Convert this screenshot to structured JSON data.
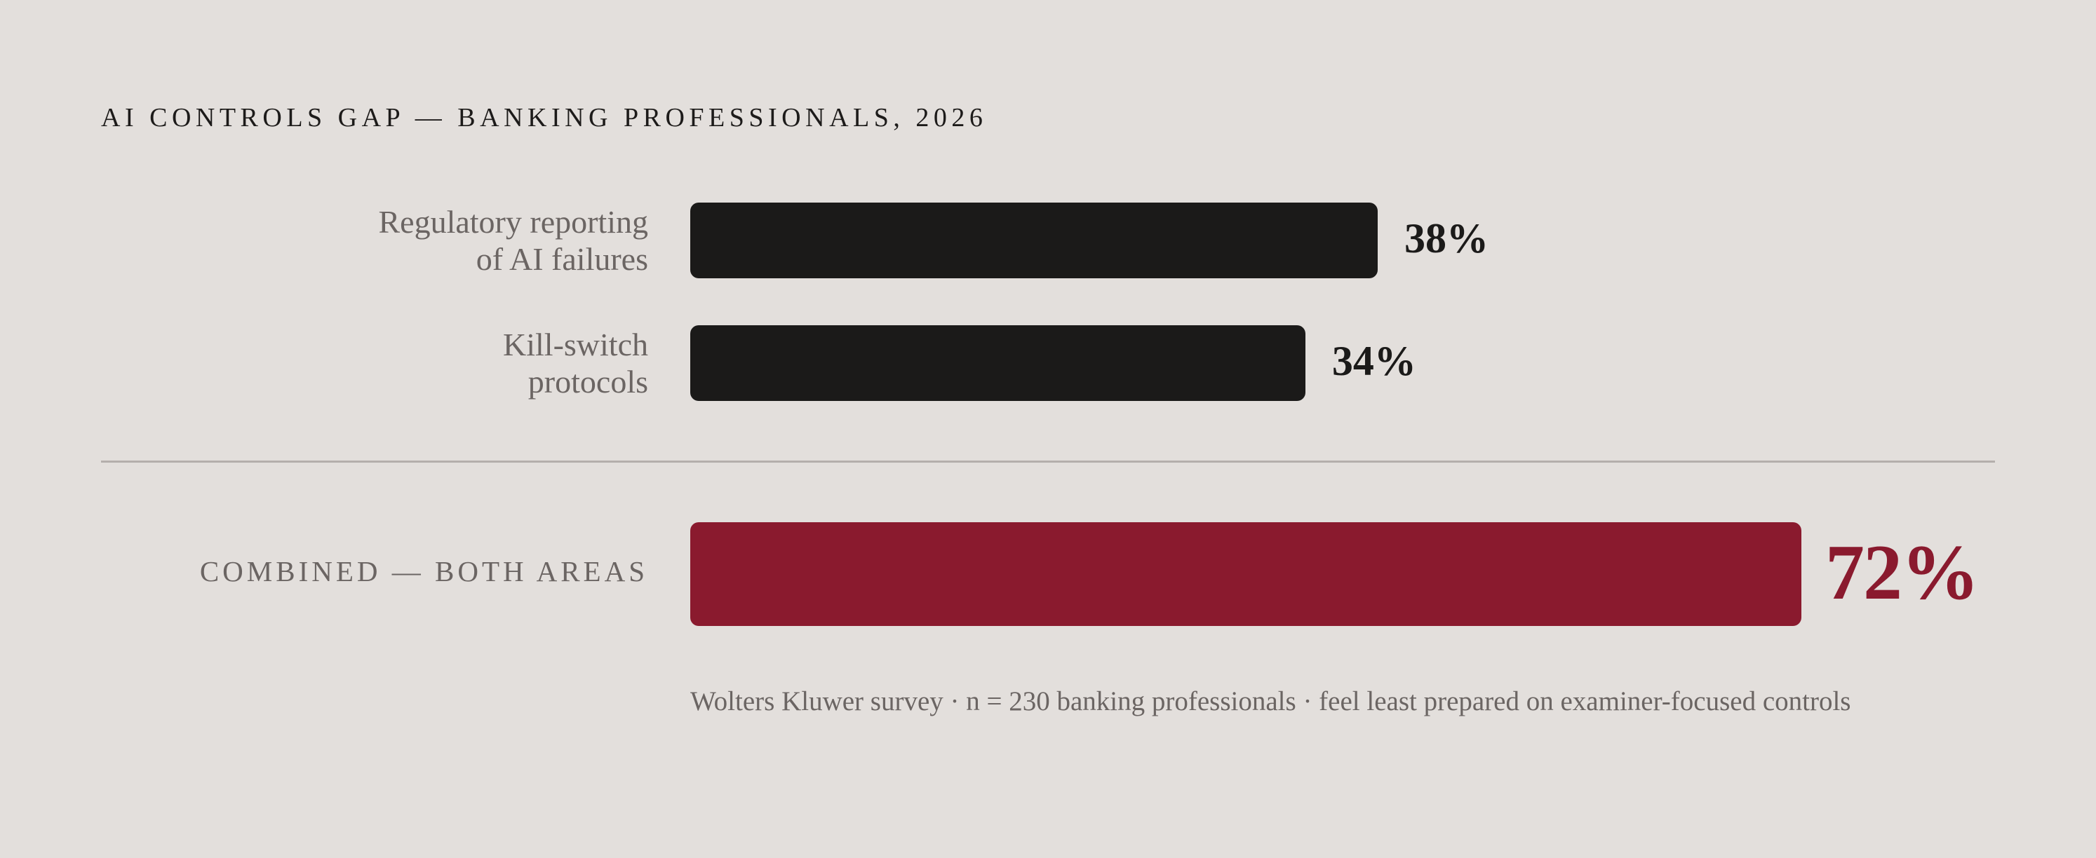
{
  "chart_data": {
    "type": "bar",
    "orientation": "horizontal",
    "title": "AI CONTROLS GAP — BANKING PROFESSIONALS, 2026",
    "categories": [
      [
        "Regulatory reporting",
        "of AI failures"
      ],
      [
        "Kill-switch",
        "protocols"
      ]
    ],
    "values": [
      38,
      34
    ],
    "value_labels": [
      "38%",
      "34%"
    ],
    "combined": {
      "label": "COMBINED — BOTH AREAS",
      "value": 72,
      "value_label": "72%"
    },
    "xlim": [
      0,
      100
    ],
    "footnote": "Wolters Kluwer survey · n = 230 banking professionals · feel least prepared on examiner-focused controls"
  },
  "colors": {
    "background": "#e3dfdc",
    "bar": "#1b1a19",
    "combined_bar": "#8a1a2e",
    "label_text": "#6b6563"
  }
}
